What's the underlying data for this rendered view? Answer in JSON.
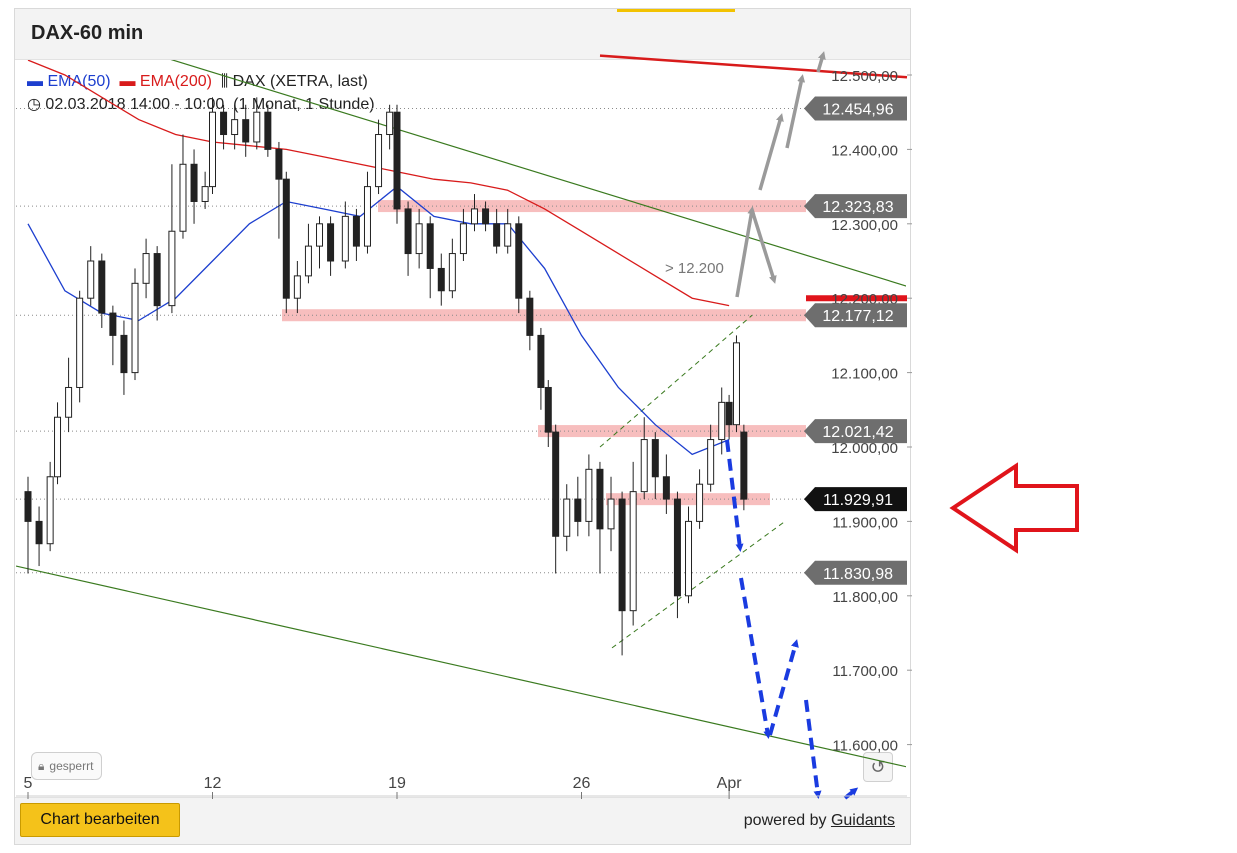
{
  "header": {
    "title": "DAX-60 min"
  },
  "legend": {
    "ema50": "EMA(50)",
    "ema200": "EMA(200)",
    "instrument": "DAX (XETRA, last)",
    "daterange": "02.03.2018 14:00 - 10:00",
    "period": "(1 Monat, 1 Stunde)"
  },
  "footer": {
    "edit_label": "Chart bearbeiten",
    "powered_prefix": "powered by",
    "powered_link": "Guidants"
  },
  "locked_label": "gesperrt",
  "annotation_text": "> 12.200",
  "colors": {
    "ema50": "#1d3fcf",
    "ema200": "#d81b1b",
    "accent": "#f4c21a",
    "zone": "#f6b3b3",
    "arrow_red": "#e0141b"
  },
  "chart_data": {
    "type": "candlestick",
    "ylim": [
      11550,
      12540
    ],
    "y_ticks": [
      {
        "v": 12500,
        "label": "12.500,00"
      },
      {
        "v": 12400,
        "label": "12.400,00"
      },
      {
        "v": 12300,
        "label": "12.300,00"
      },
      {
        "v": 12200,
        "label": "12.200,00"
      },
      {
        "v": 12100,
        "label": "12.100,00"
      },
      {
        "v": 12000,
        "label": "12.000,00"
      },
      {
        "v": 11900,
        "label": "11.900,00"
      },
      {
        "v": 11800,
        "label": "11.800,00"
      },
      {
        "v": 11700,
        "label": "11.700,00"
      },
      {
        "v": 11600,
        "label": "11.600,00"
      }
    ],
    "x_ticks": [
      {
        "t": 0.0,
        "label": "5"
      },
      {
        "t": 5.0,
        "label": "12"
      },
      {
        "t": 10.0,
        "label": "19"
      },
      {
        "t": 15.0,
        "label": "26"
      },
      {
        "t": 19.0,
        "label": "Apr"
      }
    ],
    "levels": [
      {
        "v": 12454.96,
        "label": "12.454,96",
        "style": "gray"
      },
      {
        "v": 12323.83,
        "label": "12.323,83",
        "style": "gray"
      },
      {
        "v": 12177.12,
        "label": "12.177,12",
        "style": "gray"
      },
      {
        "v": 12021.42,
        "label": "12.021,42",
        "style": "gray"
      },
      {
        "v": 11929.91,
        "label": "11.929,91",
        "style": "black"
      },
      {
        "v": 11830.98,
        "label": "11.830,98",
        "style": "gray"
      }
    ],
    "candles": [
      [
        0.0,
        11940,
        11900,
        11960,
        11830
      ],
      [
        0.3,
        11900,
        11870,
        11920,
        11840
      ],
      [
        0.6,
        11870,
        11960,
        11980,
        11860
      ],
      [
        0.8,
        11960,
        12040,
        12060,
        11950
      ],
      [
        1.1,
        12040,
        12080,
        12120,
        12020
      ],
      [
        1.4,
        12080,
        12200,
        12210,
        12060
      ],
      [
        1.7,
        12200,
        12250,
        12270,
        12190
      ],
      [
        2.0,
        12250,
        12180,
        12260,
        12160
      ],
      [
        2.3,
        12180,
        12150,
        12190,
        12110
      ],
      [
        2.6,
        12150,
        12100,
        12170,
        12070
      ],
      [
        2.9,
        12100,
        12220,
        12240,
        12090
      ],
      [
        3.2,
        12220,
        12260,
        12280,
        12200
      ],
      [
        3.5,
        12260,
        12190,
        12270,
        12170
      ],
      [
        3.9,
        12190,
        12290,
        12380,
        12180
      ],
      [
        4.2,
        12290,
        12380,
        12420,
        12280
      ],
      [
        4.5,
        12380,
        12330,
        12400,
        12300
      ],
      [
        4.8,
        12330,
        12350,
        12370,
        12320
      ],
      [
        5.0,
        12350,
        12450,
        12470,
        12340
      ],
      [
        5.3,
        12450,
        12420,
        12460,
        12400
      ],
      [
        5.6,
        12420,
        12440,
        12460,
        12400
      ],
      [
        5.9,
        12440,
        12410,
        12460,
        12390
      ],
      [
        6.2,
        12410,
        12450,
        12470,
        12400
      ],
      [
        6.5,
        12450,
        12400,
        12460,
        12390
      ],
      [
        6.8,
        12400,
        12360,
        12410,
        12280
      ],
      [
        7.0,
        12360,
        12200,
        12370,
        12180
      ],
      [
        7.3,
        12200,
        12230,
        12250,
        12180
      ],
      [
        7.6,
        12230,
        12270,
        12300,
        12220
      ],
      [
        7.9,
        12270,
        12300,
        12310,
        12240
      ],
      [
        8.2,
        12300,
        12250,
        12310,
        12230
      ],
      [
        8.6,
        12250,
        12310,
        12330,
        12240
      ],
      [
        8.9,
        12310,
        12270,
        12320,
        12250
      ],
      [
        9.2,
        12270,
        12350,
        12370,
        12260
      ],
      [
        9.5,
        12350,
        12420,
        12440,
        12340
      ],
      [
        9.8,
        12420,
        12450,
        12460,
        12400
      ],
      [
        10.0,
        12450,
        12320,
        12460,
        12300
      ],
      [
        10.3,
        12320,
        12260,
        12330,
        12230
      ],
      [
        10.6,
        12260,
        12300,
        12320,
        12240
      ],
      [
        10.9,
        12300,
        12240,
        12310,
        12200
      ],
      [
        11.2,
        12240,
        12210,
        12260,
        12190
      ],
      [
        11.5,
        12210,
        12260,
        12280,
        12200
      ],
      [
        11.8,
        12260,
        12300,
        12320,
        12250
      ],
      [
        12.1,
        12300,
        12320,
        12340,
        12290
      ],
      [
        12.4,
        12320,
        12300,
        12330,
        12290
      ],
      [
        12.7,
        12300,
        12270,
        12320,
        12260
      ],
      [
        13.0,
        12270,
        12300,
        12320,
        12260
      ],
      [
        13.3,
        12300,
        12200,
        12310,
        12180
      ],
      [
        13.6,
        12200,
        12150,
        12210,
        12130
      ],
      [
        13.9,
        12150,
        12080,
        12160,
        12050
      ],
      [
        14.1,
        12080,
        12020,
        12090,
        12000
      ],
      [
        14.3,
        12020,
        11880,
        12030,
        11830
      ],
      [
        14.6,
        11880,
        11930,
        11950,
        11860
      ],
      [
        14.9,
        11930,
        11900,
        11960,
        11880
      ],
      [
        15.2,
        11900,
        11970,
        11990,
        11880
      ],
      [
        15.5,
        11970,
        11890,
        11980,
        11830
      ],
      [
        15.8,
        11890,
        11930,
        11960,
        11860
      ],
      [
        16.1,
        11930,
        11780,
        11940,
        11720
      ],
      [
        16.4,
        11780,
        11940,
        11980,
        11760
      ],
      [
        16.7,
        11940,
        12010,
        12040,
        11930
      ],
      [
        17.0,
        12010,
        11960,
        12020,
        11930
      ],
      [
        17.3,
        11960,
        11930,
        11990,
        11910
      ],
      [
        17.6,
        11930,
        11800,
        11940,
        11770
      ],
      [
        17.9,
        11800,
        11900,
        11920,
        11790
      ],
      [
        18.2,
        11900,
        11950,
        11970,
        11890
      ],
      [
        18.5,
        11950,
        12010,
        12030,
        11940
      ],
      [
        18.8,
        12010,
        12060,
        12080,
        11990
      ],
      [
        19.0,
        12060,
        12030,
        12070,
        12010
      ],
      [
        19.2,
        12030,
        12140,
        12150,
        12020
      ],
      [
        19.4,
        12020,
        11929.91,
        12030,
        11915
      ]
    ],
    "ema50": [
      [
        0.0,
        12300
      ],
      [
        1.0,
        12210
      ],
      [
        2.0,
        12180
      ],
      [
        3.0,
        12170
      ],
      [
        4.0,
        12200
      ],
      [
        5.0,
        12250
      ],
      [
        6.0,
        12300
      ],
      [
        7.0,
        12330
      ],
      [
        8.0,
        12320
      ],
      [
        9.0,
        12310
      ],
      [
        10.0,
        12350
      ],
      [
        11.0,
        12310
      ],
      [
        12.0,
        12300
      ],
      [
        13.0,
        12300
      ],
      [
        14.0,
        12240
      ],
      [
        15.0,
        12150
      ],
      [
        16.0,
        12080
      ],
      [
        17.0,
        12030
      ],
      [
        18.0,
        11990
      ],
      [
        19.0,
        12010
      ]
    ],
    "ema200": [
      [
        0.0,
        12520
      ],
      [
        1.0,
        12500
      ],
      [
        2.0,
        12470
      ],
      [
        3.0,
        12440
      ],
      [
        4.0,
        12420
      ],
      [
        5.0,
        12410
      ],
      [
        6.0,
        12405
      ],
      [
        7.0,
        12400
      ],
      [
        8.0,
        12390
      ],
      [
        9.0,
        12380
      ],
      [
        10.0,
        12370
      ],
      [
        11.0,
        12360
      ],
      [
        12.0,
        12355
      ],
      [
        13.0,
        12345
      ],
      [
        14.0,
        12320
      ],
      [
        15.0,
        12290
      ],
      [
        16.0,
        12260
      ],
      [
        17.0,
        12230
      ],
      [
        18.0,
        12200
      ],
      [
        19.0,
        12190
      ]
    ]
  }
}
